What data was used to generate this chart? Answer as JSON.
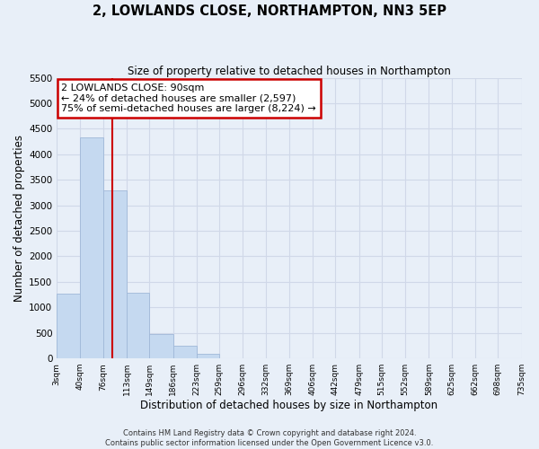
{
  "title": "2, LOWLANDS CLOSE, NORTHAMPTON, NN3 5EP",
  "subtitle": "Size of property relative to detached houses in Northampton",
  "xlabel": "Distribution of detached houses by size in Northampton",
  "ylabel": "Number of detached properties",
  "footer_line1": "Contains HM Land Registry data © Crown copyright and database right 2024.",
  "footer_line2": "Contains public sector information licensed under the Open Government Licence v3.0.",
  "bar_edges": [
    3,
    40,
    76,
    113,
    149,
    186,
    223,
    259,
    296,
    332,
    369,
    406,
    442,
    479,
    515,
    552,
    589,
    625,
    662,
    698,
    735
  ],
  "bar_heights": [
    1270,
    4340,
    3290,
    1290,
    480,
    240,
    90,
    0,
    0,
    0,
    0,
    0,
    0,
    0,
    0,
    0,
    0,
    0,
    0,
    0
  ],
  "bar_color": "#c5d9f0",
  "bar_edgecolor": "#a0b8d8",
  "property_line_x": 90,
  "ylim": [
    0,
    5500
  ],
  "yticks": [
    0,
    500,
    1000,
    1500,
    2000,
    2500,
    3000,
    3500,
    4000,
    4500,
    5000,
    5500
  ],
  "annotation_title": "2 LOWLANDS CLOSE: 90sqm",
  "annotation_line1": "← 24% of detached houses are smaller (2,597)",
  "annotation_line2": "75% of semi-detached houses are larger (8,224) →",
  "annotation_box_facecolor": "#ffffff",
  "annotation_box_edgecolor": "#cc0000",
  "vline_color": "#cc0000",
  "grid_color": "#d0d8e8",
  "background_color": "#e8eff8",
  "plot_background": "#e8eff8",
  "tick_labels": [
    "3sqm",
    "40sqm",
    "76sqm",
    "113sqm",
    "149sqm",
    "186sqm",
    "223sqm",
    "259sqm",
    "296sqm",
    "332sqm",
    "369sqm",
    "406sqm",
    "442sqm",
    "479sqm",
    "515sqm",
    "552sqm",
    "589sqm",
    "625sqm",
    "662sqm",
    "698sqm",
    "735sqm"
  ]
}
